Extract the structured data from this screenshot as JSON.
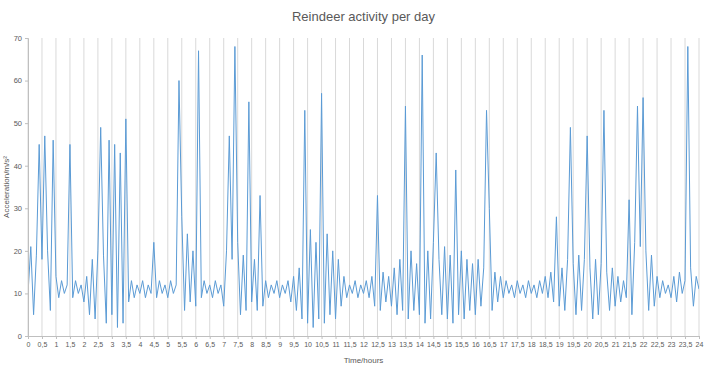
{
  "chart_data": {
    "type": "line",
    "title": "Reindeer activity per day",
    "x_label": "Time/hours",
    "y_label": "Acceleration/m/s²",
    "color": "#5b9bd5",
    "grid": true,
    "xlim": [
      0,
      24
    ],
    "ylim": [
      0,
      70
    ],
    "yticks": [
      0,
      10,
      20,
      30,
      40,
      50,
      60,
      70
    ],
    "xticks": [
      0,
      {
        "value": 0.5,
        "label": "0,5"
      },
      1,
      {
        "value": 1.5,
        "label": "1,5"
      },
      2,
      {
        "value": 2.5,
        "label": "2,5"
      },
      3,
      {
        "value": 3.5,
        "label": "3,5"
      },
      4,
      {
        "value": 4.5,
        "label": "4,5"
      },
      5,
      {
        "value": 5.5,
        "label": "5,5"
      },
      6,
      {
        "value": 6.5,
        "label": "6,5"
      },
      7,
      {
        "value": 7.5,
        "label": "7,5"
      },
      8,
      {
        "value": 8.5,
        "label": "8,5"
      },
      9,
      {
        "value": 9.5,
        "label": "9,5"
      },
      10,
      {
        "value": 10.5,
        "label": "10,5"
      },
      11,
      {
        "value": 11.5,
        "label": "11,5"
      },
      12,
      {
        "value": 12.5,
        "label": "12,5"
      },
      13,
      {
        "value": 13.5,
        "label": "13,5"
      },
      14,
      {
        "value": 14.5,
        "label": "14,5"
      },
      15,
      {
        "value": 15.5,
        "label": "15,5"
      },
      16,
      {
        "value": 16.5,
        "label": "16,5"
      },
      17,
      {
        "value": 17.5,
        "label": "17,5"
      },
      18,
      {
        "value": 18.5,
        "label": "18,5"
      },
      19,
      {
        "value": 19.5,
        "label": "19,5"
      },
      20,
      {
        "value": 20.5,
        "label": "20,5"
      },
      21,
      {
        "value": 21.5,
        "label": "21,5"
      },
      22,
      {
        "value": 22.5,
        "label": "22,5"
      },
      23,
      {
        "value": 23.5,
        "label": "23,5"
      },
      24
    ],
    "x": [
      0,
      0.1,
      0.2,
      0.3,
      0.4,
      0.5,
      0.6,
      0.7,
      0.8,
      0.9,
      1,
      1.1,
      1.2,
      1.3,
      1.4,
      1.5,
      1.6,
      1.7,
      1.8,
      1.9,
      2,
      2.1,
      2.2,
      2.3,
      2.4,
      2.5,
      2.6,
      2.7,
      2.8,
      2.9,
      3,
      3.1,
      3.2,
      3.3,
      3.4,
      3.5,
      3.6,
      3.7,
      3.8,
      3.9,
      4,
      4.1,
      4.2,
      4.3,
      4.4,
      4.5,
      4.6,
      4.7,
      4.8,
      4.9,
      5,
      5.1,
      5.2,
      5.3,
      5.4,
      5.5,
      5.6,
      5.7,
      5.8,
      5.9,
      6,
      6.1,
      6.2,
      6.3,
      6.4,
      6.5,
      6.6,
      6.7,
      6.8,
      6.9,
      7,
      7.1,
      7.2,
      7.3,
      7.4,
      7.5,
      7.6,
      7.7,
      7.8,
      7.9,
      8,
      8.1,
      8.2,
      8.3,
      8.4,
      8.5,
      8.6,
      8.7,
      8.8,
      8.9,
      9,
      9.1,
      9.2,
      9.3,
      9.4,
      9.5,
      9.6,
      9.7,
      9.8,
      9.9,
      10,
      10.1,
      10.2,
      10.3,
      10.4,
      10.5,
      10.6,
      10.7,
      10.8,
      10.9,
      11,
      11.1,
      11.2,
      11.3,
      11.4,
      11.5,
      11.6,
      11.7,
      11.8,
      11.9,
      12,
      12.1,
      12.2,
      12.3,
      12.4,
      12.5,
      12.6,
      12.7,
      12.8,
      12.9,
      13,
      13.1,
      13.2,
      13.3,
      13.4,
      13.5,
      13.6,
      13.7,
      13.8,
      13.9,
      14,
      14.1,
      14.2,
      14.3,
      14.4,
      14.5,
      14.6,
      14.7,
      14.8,
      14.9,
      15,
      15.1,
      15.2,
      15.3,
      15.4,
      15.5,
      15.6,
      15.7,
      15.8,
      15.9,
      16,
      16.1,
      16.2,
      16.3,
      16.4,
      16.5,
      16.6,
      16.7,
      16.8,
      16.9,
      17,
      17.1,
      17.2,
      17.3,
      17.4,
      17.5,
      17.6,
      17.7,
      17.8,
      17.9,
      18,
      18.1,
      18.2,
      18.3,
      18.4,
      18.5,
      18.6,
      18.7,
      18.8,
      18.9,
      19,
      19.1,
      19.2,
      19.3,
      19.4,
      19.5,
      19.6,
      19.7,
      19.8,
      19.9,
      20,
      20.1,
      20.2,
      20.3,
      20.4,
      20.5,
      20.6,
      20.7,
      20.8,
      20.9,
      21,
      21.1,
      21.2,
      21.3,
      21.4,
      21.5,
      21.6,
      21.7,
      21.8,
      21.9,
      22,
      22.1,
      22.2,
      22.3,
      22.4,
      22.5,
      22.6,
      22.7,
      22.8,
      22.9,
      23,
      23.1,
      23.2,
      23.3,
      23.4,
      23.5,
      23.6,
      23.7,
      23.8,
      23.9,
      24
    ],
    "values": [
      10,
      21,
      5,
      19,
      45,
      18,
      47,
      20,
      6,
      46,
      14,
      9,
      13,
      10,
      12,
      45,
      9,
      13,
      10,
      12,
      8,
      14,
      5,
      18,
      4,
      20,
      49,
      19,
      3,
      46,
      5,
      45,
      2,
      43,
      3,
      51,
      8,
      13,
      9,
      12,
      10,
      13,
      9,
      12,
      10,
      22,
      9,
      13,
      10,
      12,
      9,
      13,
      10,
      12,
      60,
      28,
      6,
      24,
      8,
      20,
      7,
      67,
      9,
      13,
      10,
      12,
      9,
      13,
      10,
      12,
      7,
      20,
      47,
      18,
      68,
      22,
      5,
      19,
      6,
      55,
      8,
      18,
      6,
      33,
      7,
      13,
      9,
      12,
      10,
      13,
      9,
      12,
      10,
      13,
      8,
      14,
      6,
      16,
      4,
      53,
      3,
      25,
      2,
      22,
      4,
      57,
      3,
      24,
      5,
      20,
      4,
      18,
      7,
      14,
      9,
      12,
      10,
      13,
      9,
      12,
      10,
      13,
      9,
      14,
      7,
      33,
      6,
      15,
      8,
      14,
      7,
      16,
      5,
      18,
      6,
      54,
      4,
      20,
      6,
      17,
      5,
      66,
      3,
      20,
      4,
      22,
      43,
      18,
      5,
      21,
      4,
      19,
      3,
      39,
      5,
      20,
      4,
      18,
      6,
      17,
      5,
      18,
      7,
      16,
      53,
      30,
      6,
      15,
      8,
      14,
      9,
      13,
      10,
      12,
      9,
      13,
      10,
      12,
      9,
      13,
      10,
      12,
      9,
      13,
      10,
      14,
      9,
      15,
      8,
      28,
      7,
      16,
      6,
      18,
      49,
      17,
      5,
      19,
      6,
      18,
      47,
      16,
      4,
      18,
      5,
      17,
      53,
      15,
      6,
      16,
      7,
      14,
      8,
      13,
      9,
      32,
      5,
      22,
      54,
      21,
      56,
      20,
      6,
      19,
      7,
      14,
      9,
      13,
      10,
      12,
      9,
      14,
      8,
      15,
      10,
      13,
      68,
      16,
      7,
      14,
      11
    ]
  }
}
